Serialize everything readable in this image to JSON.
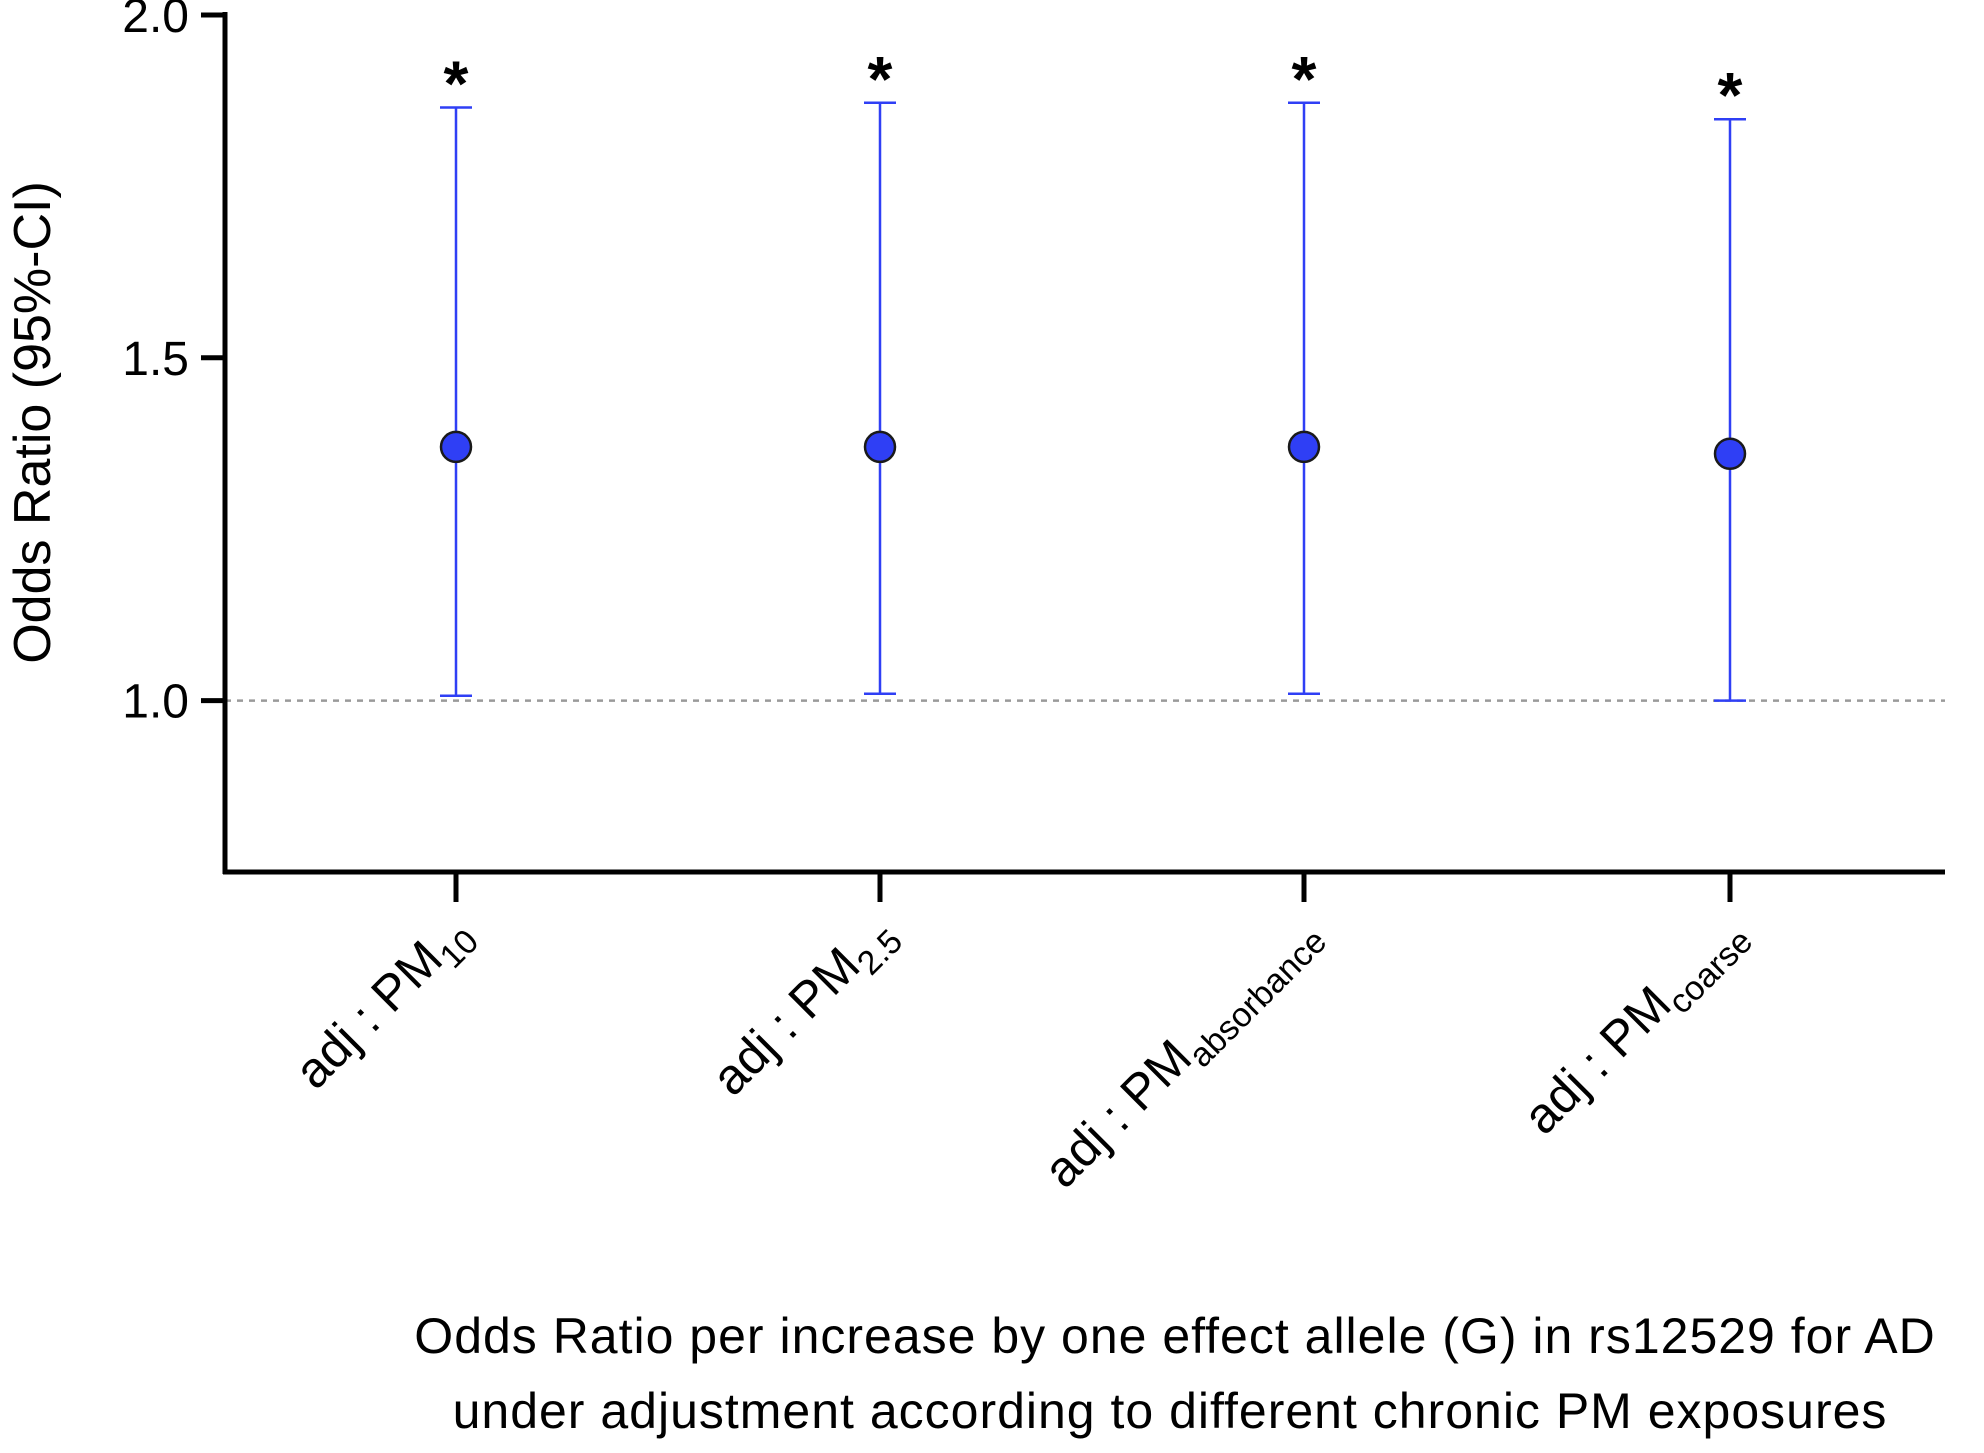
{
  "chart_data": {
    "type": "scatter",
    "subtype": "forest-plot-point-with-error-bars",
    "ylabel": "Odds Ratio (95%-CI)",
    "ylim": [
      0.75,
      2.0
    ],
    "yticks": [
      1.0,
      1.5,
      2.0
    ],
    "ytick_labels": [
      "1.0",
      "1.5",
      "2.0"
    ],
    "reference_line": {
      "y": 1.0,
      "style": "dotted"
    },
    "categories": [
      {
        "prefix": "adj : PM",
        "subscript": "10"
      },
      {
        "prefix": "adj : PM",
        "subscript": "2.5"
      },
      {
        "prefix": "adj : PM",
        "subscript": "absorbance"
      },
      {
        "prefix": "adj : PM",
        "subscript": "coarse"
      }
    ],
    "series": [
      {
        "values": [
          1.37,
          1.37,
          1.37,
          1.36
        ],
        "ci_lower": [
          1.007,
          1.01,
          1.01,
          1.0
        ],
        "ci_upper": [
          1.865,
          1.872,
          1.872,
          1.848
        ],
        "significance": [
          "*",
          "*",
          "*",
          "*"
        ]
      }
    ],
    "colors": {
      "marker_fill": "#2f3ff5",
      "errorbar": "#2f3ff5",
      "marker_edge": "#1a1a1a",
      "reference_line": "#9a9a9a",
      "axis": "#000000"
    },
    "grid": false,
    "legend": "none",
    "caption": [
      "Odds Ratio per increase by one effect allele (G) in rs12529 for AD",
      "under adjustment according to different chronic PM exposures"
    ]
  }
}
